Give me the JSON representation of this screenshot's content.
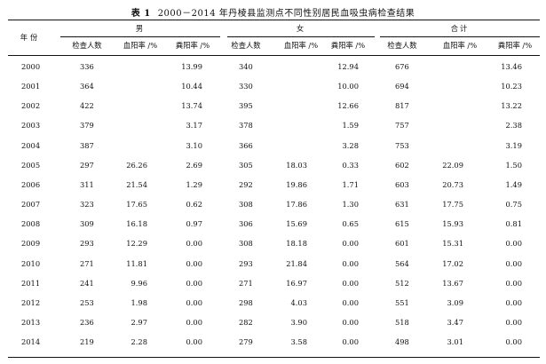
{
  "caption": {
    "label": "表 1",
    "title": "2000－2014 年丹棱县监测点不同性别居民血吸虫病检查结果"
  },
  "header": {
    "year": "年份",
    "groups": [
      "男",
      "女",
      "合计"
    ],
    "subcols": [
      [
        "检查人数",
        "血阳率 /%",
        "粪阳率 /%"
      ],
      [
        "检查人数",
        "血阳率 /%",
        "粪阳率 /%"
      ],
      [
        "检查人数",
        "血阳率 /%",
        "粪阳率 /%"
      ]
    ]
  },
  "rows": [
    [
      "2000",
      "336",
      "",
      "13.99",
      "340",
      "",
      "12.94",
      "676",
      "",
      "13.46"
    ],
    [
      "2001",
      "364",
      "",
      "10.44",
      "330",
      "",
      "10.00",
      "694",
      "",
      "10.23"
    ],
    [
      "2002",
      "422",
      "",
      "13.74",
      "395",
      "",
      "12.66",
      "817",
      "",
      "13.22"
    ],
    [
      "2003",
      "379",
      "",
      "3.17",
      "378",
      "",
      "1.59",
      "757",
      "",
      "2.38"
    ],
    [
      "2004",
      "387",
      "",
      "3.10",
      "366",
      "",
      "3.28",
      "753",
      "",
      "3.19"
    ],
    [
      "2005",
      "297",
      "26.26",
      "2.69",
      "305",
      "18.03",
      "0.33",
      "602",
      "22.09",
      "1.50"
    ],
    [
      "2006",
      "311",
      "21.54",
      "1.29",
      "292",
      "19.86",
      "1.71",
      "603",
      "20.73",
      "1.49"
    ],
    [
      "2007",
      "323",
      "17.65",
      "0.62",
      "308",
      "17.86",
      "1.30",
      "631",
      "17.75",
      "0.75"
    ],
    [
      "2008",
      "309",
      "16.18",
      "0.97",
      "306",
      "15.69",
      "0.65",
      "615",
      "15.93",
      "0.81"
    ],
    [
      "2009",
      "293",
      "12.29",
      "0.00",
      "308",
      "18.18",
      "0.00",
      "601",
      "15.31",
      "0.00"
    ],
    [
      "2010",
      "271",
      "11.81",
      "0.00",
      "293",
      "21.84",
      "0.00",
      "564",
      "17.02",
      "0.00"
    ],
    [
      "2011",
      "241",
      "9.96",
      "0.00",
      "271",
      "16.97",
      "0.00",
      "512",
      "13.67",
      "0.00"
    ],
    [
      "2012",
      "253",
      "1.98",
      "0.00",
      "298",
      "4.03",
      "0.00",
      "551",
      "3.09",
      "0.00"
    ],
    [
      "2013",
      "236",
      "2.97",
      "0.00",
      "282",
      "3.90",
      "0.00",
      "518",
      "3.47",
      "0.00"
    ],
    [
      "2014",
      "219",
      "2.28",
      "0.00",
      "279",
      "3.58",
      "0.00",
      "498",
      "3.01",
      "0.00"
    ]
  ]
}
